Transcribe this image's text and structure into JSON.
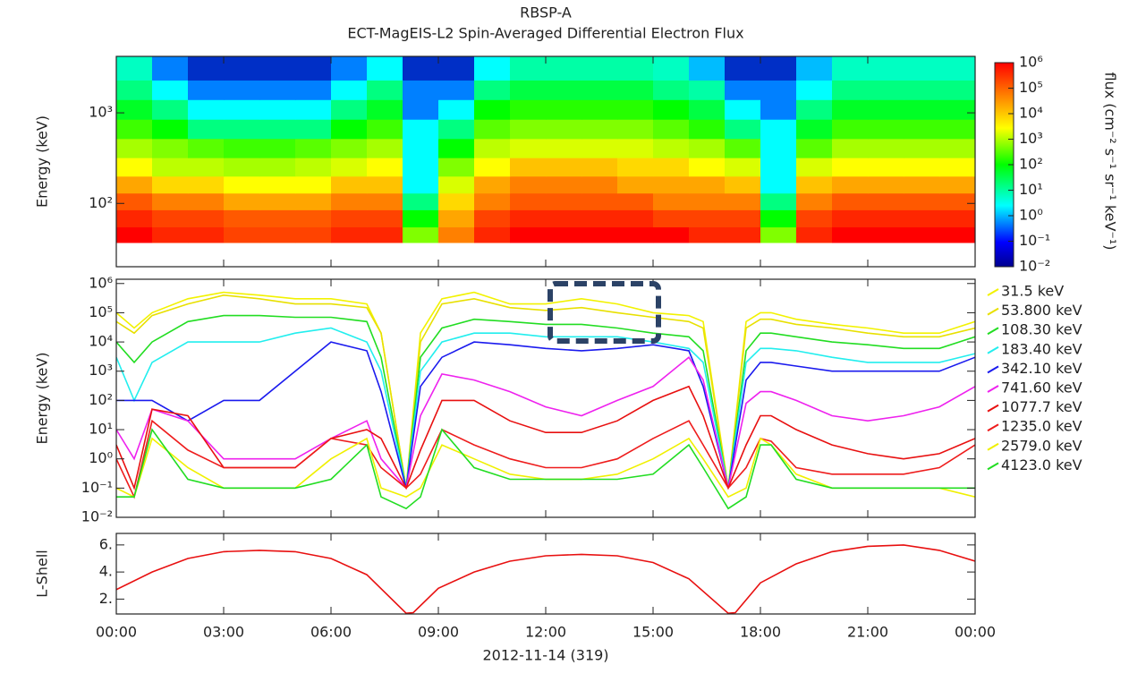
{
  "chart_data": [
    {
      "type": "heatmap",
      "title": "RBSP-A",
      "subtitle": "ECT-MagEIS-L2  Spin-Averaged Differential Electron Flux",
      "y_label": "Energy (keV)",
      "ylog": true,
      "xlim": [
        0,
        24
      ],
      "ylim": [
        20,
        4200
      ],
      "yticks": [
        {
          "value": 100,
          "label": "10²"
        },
        {
          "value": 1000,
          "label": "10³"
        }
      ],
      "x_bins": [
        0,
        1,
        2,
        3,
        4,
        5,
        6,
        7,
        8,
        9,
        10,
        11,
        12,
        13,
        14,
        15,
        16,
        17,
        18,
        19,
        20,
        21,
        22,
        23,
        24
      ],
      "y_bins": [
        37,
        55,
        85,
        130,
        200,
        320,
        520,
        850,
        1400,
        2300,
        4200
      ],
      "z": [
        [
          1000000.0,
          500000.0,
          500000.0,
          300000.0,
          300000.0,
          300000.0,
          500000.0,
          500000.0,
          1000.0,
          100000.0,
          500000.0,
          1000000.0,
          1000000.0,
          1000000.0,
          1000000.0,
          1000000.0,
          500000.0,
          500000.0,
          1000.0,
          500000.0,
          1000000.0,
          1000000.0,
          1000000.0,
          1000000.0
        ],
        [
          500000.0,
          300000.0,
          300000.0,
          200000.0,
          200000.0,
          200000.0,
          300000.0,
          300000.0,
          100.0,
          50000.0,
          300000.0,
          500000.0,
          500000.0,
          500000.0,
          500000.0,
          300000.0,
          300000.0,
          300000.0,
          100.0,
          300000.0,
          500000.0,
          500000.0,
          500000.0,
          500000.0
        ],
        [
          200000.0,
          100000.0,
          100000.0,
          50000.0,
          50000.0,
          50000.0,
          100000.0,
          100000.0,
          10.0,
          20000.0,
          100000.0,
          200000.0,
          200000.0,
          200000.0,
          200000.0,
          100000.0,
          100000.0,
          100000.0,
          10.0,
          100000.0,
          200000.0,
          200000.0,
          200000.0,
          200000.0
        ],
        [
          50000.0,
          20000.0,
          20000.0,
          10000.0,
          10000.0,
          10000.0,
          30000.0,
          30000.0,
          1,
          5000.0,
          50000.0,
          100000.0,
          100000.0,
          100000.0,
          50000.0,
          50000.0,
          50000.0,
          30000.0,
          1,
          30000.0,
          50000.0,
          50000.0,
          50000.0,
          50000.0
        ],
        [
          10000.0,
          3000.0,
          3000.0,
          2000.0,
          2000.0,
          3000.0,
          5000.0,
          10000.0,
          1,
          1000.0,
          10000.0,
          30000.0,
          30000.0,
          30000.0,
          20000.0,
          20000.0,
          10000.0,
          5000.0,
          1,
          5000.0,
          10000.0,
          10000.0,
          10000.0,
          10000.0
        ],
        [
          2000.0,
          1000.0,
          500.0,
          300.0,
          300.0,
          500.0,
          1000.0,
          2000.0,
          1,
          100.0,
          3000.0,
          5000.0,
          5000.0,
          5000.0,
          5000.0,
          3000.0,
          2000.0,
          500.0,
          1,
          500.0,
          2000.0,
          2000.0,
          2000.0,
          2000.0
        ],
        [
          300.0,
          100.0,
          10.0,
          10.0,
          10.0,
          10.0,
          100.0,
          300.0,
          1,
          10.0,
          500.0,
          1000.0,
          1000.0,
          1000.0,
          1000.0,
          500.0,
          200.0,
          10.0,
          1,
          50.0,
          300.0,
          300.0,
          300.0,
          300.0
        ],
        [
          50.0,
          10.0,
          1,
          1,
          1,
          1,
          10.0,
          50.0,
          0.1,
          1,
          100.0,
          200.0,
          200.0,
          200.0,
          200.0,
          100.0,
          30.0,
          1,
          0.1,
          10.0,
          50.0,
          50.0,
          50.0,
          50.0
        ],
        [
          10.0,
          1,
          0.1,
          0.1,
          0.1,
          0.1,
          1,
          10.0,
          0.1,
          0.1,
          10.0,
          30.0,
          30.0,
          30.0,
          30.0,
          10.0,
          5,
          0.1,
          0.1,
          1,
          10.0,
          10.0,
          10.0,
          10.0
        ],
        [
          3,
          0.1,
          0.03,
          0.03,
          0.03,
          0.03,
          0.1,
          1,
          0.03,
          0.03,
          1,
          5,
          5,
          5,
          5,
          3,
          0.3,
          0.03,
          0.03,
          0.3,
          3,
          3,
          3,
          3
        ]
      ],
      "colorbar": {
        "label": "flux (cm⁻² s⁻¹ sr⁻¹ keV⁻¹)",
        "lim": [
          0.01,
          1000000.0
        ],
        "ticks": [
          {
            "value": 1000000.0,
            "label": "10⁶"
          },
          {
            "value": 100000.0,
            "label": "10⁵"
          },
          {
            "value": 10000.0,
            "label": "10⁴"
          },
          {
            "value": 1000.0,
            "label": "10³"
          },
          {
            "value": 100.0,
            "label": "10²"
          },
          {
            "value": 10,
            "label": "10¹"
          },
          {
            "value": 1,
            "label": "10⁰"
          },
          {
            "value": 0.1,
            "label": "10⁻¹"
          },
          {
            "value": 0.01,
            "label": "10⁻²"
          }
        ]
      }
    },
    {
      "type": "line",
      "y_label": "Energy (keV)",
      "ylog": true,
      "legend": "right",
      "xlim": [
        0,
        24
      ],
      "ylim": [
        0.01,
        1400000.0
      ],
      "yticks": [
        {
          "value": 1000000.0,
          "label": "10⁶"
        },
        {
          "value": 100000.0,
          "label": "10⁵"
        },
        {
          "value": 10000.0,
          "label": "10⁴"
        },
        {
          "value": 1000.0,
          "label": "10³"
        },
        {
          "value": 100.0,
          "label": "10²"
        },
        {
          "value": 10,
          "label": "10¹"
        },
        {
          "value": 1,
          "label": "10⁰"
        },
        {
          "value": 0.1,
          "label": "10⁻¹"
        },
        {
          "value": 0.01,
          "label": "10⁻²"
        }
      ],
      "x": [
        0,
        0.5,
        1,
        2,
        3,
        4,
        5,
        6,
        7,
        7.4,
        8.1,
        8.5,
        9.1,
        10,
        11,
        12,
        13,
        14,
        15,
        16,
        16.4,
        17.1,
        17.6,
        18,
        18.3,
        19,
        20,
        21,
        22,
        23,
        24
      ],
      "series": [
        {
          "name": "31.5 keV",
          "color": "#f2f200",
          "values": [
            100000.0,
            30000.0,
            100000.0,
            300000.0,
            500000.0,
            400000.0,
            300000.0,
            300000.0,
            200000.0,
            20000.0,
            0.1,
            20000.0,
            300000.0,
            500000.0,
            200000.0,
            200000.0,
            300000.0,
            200000.0,
            100000.0,
            80000.0,
            50000.0,
            0.1,
            50000.0,
            100000.0,
            100000.0,
            60000.0,
            40000.0,
            30000.0,
            20000.0,
            20000.0,
            50000.0
          ]
        },
        {
          "name": "53.800 keV",
          "color": "#e8e000",
          "values": [
            50000.0,
            20000.0,
            80000.0,
            200000.0,
            400000.0,
            300000.0,
            200000.0,
            200000.0,
            150000.0,
            20000.0,
            0.1,
            10000.0,
            200000.0,
            300000.0,
            150000.0,
            120000.0,
            150000.0,
            100000.0,
            70000.0,
            50000.0,
            30000.0,
            0.1,
            30000.0,
            60000.0,
            60000.0,
            40000.0,
            30000.0,
            20000.0,
            15000.0,
            15000.0,
            30000.0
          ]
        },
        {
          "name": "108.30 keV",
          "color": "#22dd22",
          "values": [
            10000.0,
            2000.0,
            10000.0,
            50000.0,
            80000.0,
            80000.0,
            70000.0,
            70000.0,
            50000.0,
            3000.0,
            0.1,
            3000.0,
            30000.0,
            60000.0,
            50000.0,
            40000.0,
            40000.0,
            30000.0,
            20000.0,
            15000.0,
            5000.0,
            0.1,
            5000.0,
            20000.0,
            20000.0,
            15000.0,
            10000.0,
            8000.0,
            6000.0,
            6000.0,
            15000.0
          ]
        },
        {
          "name": "183.40 keV",
          "color": "#22eeee",
          "values": [
            3000.0,
            100.0,
            2000.0,
            10000.0,
            10000.0,
            10000.0,
            20000.0,
            30000.0,
            10000.0,
            1000.0,
            0.1,
            1000.0,
            10000.0,
            20000.0,
            20000.0,
            15000.0,
            15000.0,
            15000.0,
            10000.0,
            6000.0,
            2000.0,
            0.1,
            2000.0,
            6000.0,
            6000.0,
            5000.0,
            3000.0,
            2000.0,
            2000.0,
            2000.0,
            4000.0
          ]
        },
        {
          "name": "342.10 keV",
          "color": "#1a1aee",
          "values": [
            100.0,
            100.0,
            100.0,
            20.0,
            100.0,
            100.0,
            1000.0,
            10000.0,
            5000.0,
            200.0,
            0.1,
            300.0,
            3000.0,
            10000.0,
            8000.0,
            6000.0,
            5000.0,
            6000.0,
            8000.0,
            5000.0,
            300.0,
            0.1,
            500.0,
            2000.0,
            2000.0,
            1500.0,
            1000.0,
            1000.0,
            1000.0,
            1000.0,
            3000.0
          ]
        },
        {
          "name": "741.60 keV",
          "color": "#ee22ee",
          "values": [
            10.0,
            1,
            50.0,
            20.0,
            1,
            1,
            1,
            5,
            20.0,
            1,
            0.1,
            30.0,
            800.0,
            500.0,
            200.0,
            60.0,
            30.0,
            100.0,
            300.0,
            3000.0,
            500.0,
            0.1,
            80.0,
            200.0,
            200.0,
            100.0,
            30.0,
            20.0,
            30.0,
            60.0,
            300.0
          ]
        },
        {
          "name": "1077.7 keV",
          "color": "#e81010",
          "values": [
            3,
            0.1,
            50.0,
            30.0,
            0.5,
            0.5,
            0.5,
            5,
            10.0,
            5,
            0.1,
            2,
            100.0,
            100.0,
            20.0,
            8,
            8,
            20.0,
            100.0,
            300.0,
            30.0,
            0.1,
            3,
            30.0,
            30.0,
            10.0,
            3,
            1.5,
            1,
            1.5,
            5
          ]
        },
        {
          "name": "1235.0 keV",
          "color": "#ee1c1c",
          "values": [
            1,
            0.05,
            20.0,
            2,
            0.5,
            0.5,
            0.5,
            5,
            3,
            0.5,
            0.1,
            0.3,
            10.0,
            3,
            1,
            0.5,
            0.5,
            1,
            5,
            20.0,
            3,
            0.1,
            0.5,
            5,
            4,
            0.5,
            0.3,
            0.3,
            0.3,
            0.5,
            3
          ]
        },
        {
          "name": "2579.0 keV",
          "color": "#f0f000",
          "values": [
            0.1,
            0.05,
            5,
            0.5,
            0.1,
            0.1,
            0.1,
            1,
            5,
            0.1,
            0.05,
            0.1,
            3,
            1,
            0.3,
            0.2,
            0.2,
            0.3,
            1,
            5,
            1,
            0.05,
            0.1,
            5,
            3,
            0.3,
            0.1,
            0.1,
            0.1,
            0.1,
            0.05
          ]
        },
        {
          "name": "4123.0 keV",
          "color": "#22dd22",
          "values": [
            0.05,
            0.05,
            10.0,
            0.2,
            0.1,
            0.1,
            0.1,
            0.2,
            3,
            0.05,
            0.02,
            0.05,
            10.0,
            0.5,
            0.2,
            0.2,
            0.2,
            0.2,
            0.3,
            3,
            0.5,
            0.02,
            0.05,
            3,
            3,
            0.2,
            0.1,
            0.1,
            0.1,
            0.1,
            0.1
          ]
        }
      ]
    },
    {
      "type": "line",
      "y_label": "L-Shell",
      "ylog": false,
      "xlim": [
        0,
        24
      ],
      "ylim": [
        0.9,
        6.85
      ],
      "yticks": [
        {
          "value": 2,
          "label": "2."
        },
        {
          "value": 4,
          "label": "4."
        },
        {
          "value": 6,
          "label": "6."
        }
      ],
      "xticks": [
        {
          "value": 0,
          "label": "00:00"
        },
        {
          "value": 3,
          "label": "03:00"
        },
        {
          "value": 6,
          "label": "06:00"
        },
        {
          "value": 9,
          "label": "09:00"
        },
        {
          "value": 12,
          "label": "12:00"
        },
        {
          "value": 15,
          "label": "15:00"
        },
        {
          "value": 18,
          "label": "18:00"
        },
        {
          "value": 21,
          "label": "21:00"
        },
        {
          "value": 24,
          "label": "00:00"
        }
      ],
      "x_label": "2012-11-14 (319)",
      "x": [
        0,
        1,
        2,
        3,
        4,
        5,
        6,
        7,
        8.1,
        8.3,
        9,
        10,
        11,
        12,
        13,
        14,
        15,
        16,
        17.1,
        17.3,
        18,
        19,
        20,
        21,
        22,
        23,
        24
      ],
      "series": [
        {
          "color": "#e81010",
          "values": [
            2.7,
            4.0,
            5.0,
            5.5,
            5.6,
            5.5,
            5.0,
            3.8,
            0.95,
            1.0,
            2.8,
            4.0,
            4.8,
            5.2,
            5.3,
            5.2,
            4.7,
            3.5,
            0.95,
            1.0,
            3.2,
            4.6,
            5.5,
            5.9,
            6.0,
            5.6,
            4.8
          ]
        }
      ]
    }
  ]
}
